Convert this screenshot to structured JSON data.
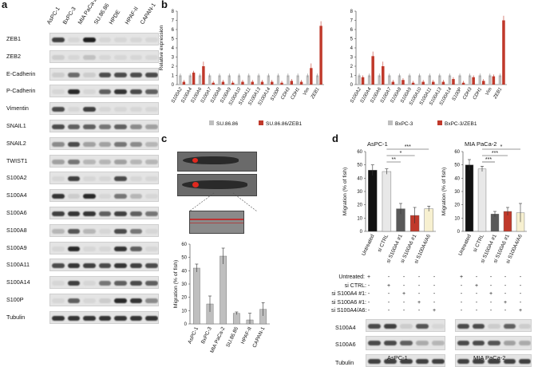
{
  "panels": {
    "a": {
      "letter": "a",
      "lanes": [
        "AsPC-1",
        "BxPC-3",
        "MIA PaCa-2",
        "SU.86.86",
        "HPDE",
        "HPAF-II",
        "CAPAN-1"
      ],
      "rows": [
        {
          "name": "ZEB1",
          "bands": [
            0.75,
            0.05,
            0.9,
            0.05,
            0.05,
            0.05,
            0.05
          ]
        },
        {
          "name": "ZEB2",
          "bands": [
            0.1,
            0.05,
            0.15,
            0.05,
            0.05,
            0.05,
            0.05
          ]
        },
        {
          "name": "E-Cadherin",
          "bands": [
            0.1,
            0.55,
            0.1,
            0.7,
            0.7,
            0.7,
            0.7
          ]
        },
        {
          "name": "P-Cadherin",
          "bands": [
            0.05,
            0.85,
            0.05,
            0.6,
            0.8,
            0.7,
            0.6
          ]
        },
        {
          "name": "Vimentin",
          "bands": [
            0.7,
            0.05,
            0.75,
            0.05,
            0.05,
            0.05,
            0.05
          ]
        },
        {
          "name": "SNAIL1",
          "bands": [
            0.7,
            0.6,
            0.6,
            0.5,
            0.6,
            0.4,
            0.3
          ]
        },
        {
          "name": "SNAIL2",
          "bands": [
            0.4,
            0.7,
            0.3,
            0.3,
            0.5,
            0.4,
            0.2
          ]
        },
        {
          "name": "TWIST1",
          "bands": [
            0.3,
            0.5,
            0.2,
            0.2,
            0.3,
            0.2,
            0.2
          ]
        },
        {
          "name": "S100A2",
          "bands": [
            0.05,
            0.75,
            0.05,
            0.05,
            0.7,
            0.05,
            0.05
          ]
        },
        {
          "name": "S100A4",
          "bands": [
            0.8,
            0.1,
            0.85,
            0.05,
            0.5,
            0.2,
            0.05
          ]
        },
        {
          "name": "S100A6",
          "bands": [
            0.75,
            0.8,
            0.8,
            0.6,
            0.75,
            0.6,
            0.5
          ]
        },
        {
          "name": "S100A8",
          "bands": [
            0.2,
            0.65,
            0.2,
            0.05,
            0.7,
            0.5,
            0.05
          ]
        },
        {
          "name": "S100A9",
          "bands": [
            0.05,
            0.85,
            0.05,
            0.05,
            0.8,
            0.6,
            0.05
          ]
        },
        {
          "name": "S100A11",
          "bands": [
            0.7,
            0.8,
            0.75,
            0.7,
            0.8,
            0.75,
            0.7
          ]
        },
        {
          "name": "S100A14",
          "bands": [
            0.05,
            0.75,
            0.05,
            0.5,
            0.6,
            0.7,
            0.6
          ]
        },
        {
          "name": "S100P",
          "bands": [
            0.05,
            0.6,
            0.05,
            0.1,
            0.85,
            0.8,
            0.4
          ]
        },
        {
          "name": "Tubulin",
          "bands": [
            0.8,
            0.8,
            0.8,
            0.8,
            0.8,
            0.8,
            0.8
          ]
        }
      ]
    },
    "b": {
      "letter": "b"
    },
    "c": {
      "letter": "c"
    },
    "d": {
      "letter": "d",
      "treat_rows": [
        "Untreated:",
        "si CTRL:",
        "si S100A4 #1:",
        "si S100A6 #1:",
        "si S100A4/A6:"
      ],
      "treat_matrix": [
        [
          "+",
          "-",
          "-",
          "-",
          "-"
        ],
        [
          "-",
          "+",
          "-",
          "-",
          "-"
        ],
        [
          "-",
          "-",
          "+",
          "-",
          "-"
        ],
        [
          "-",
          "-",
          "-",
          "+",
          "-"
        ],
        [
          "-",
          "-",
          "-",
          "-",
          "+"
        ]
      ],
      "blot_rows": [
        "S100A4",
        "S100A6",
        "Tubulin"
      ],
      "blot_cells": [
        "AsPC-1",
        "MIA PaCa-2"
      ]
    }
  },
  "colors": {
    "grey_bar": "#bfbfbf",
    "red_bar": "#c0392b",
    "dark_grey": "#595959",
    "black": "#111111",
    "light_bar": "#e8e8e8",
    "yellowish": "#f7f0d0"
  },
  "chart_data": [
    {
      "id": "b-left",
      "type": "bar",
      "categories": [
        "S100A2",
        "S100A4",
        "S100A6",
        "S100A7",
        "S100A8",
        "S100A9",
        "S100A10",
        "S100A11",
        "S100A13",
        "S100A14",
        "S100P",
        "CDH3",
        "CDH1",
        "Vim",
        "ZEB1"
      ],
      "series": [
        {
          "name": "SU.86.86",
          "values": [
            1,
            1,
            1,
            1,
            1,
            1,
            1,
            1,
            1,
            1,
            1,
            1,
            1,
            1,
            1
          ],
          "color": "#bfbfbf"
        },
        {
          "name": "SU.86.86/ZEB1",
          "values": [
            0.3,
            1.3,
            2.0,
            0.2,
            0.3,
            0.2,
            0.3,
            0.3,
            0.3,
            0.3,
            0.2,
            0.4,
            0.3,
            1.8,
            6.4
          ],
          "color": "#c0392b"
        }
      ],
      "ylabel": "Relative expression",
      "ylim": [
        0,
        8
      ],
      "yticks": [
        0,
        1,
        2,
        3,
        4,
        5,
        6,
        7,
        8
      ]
    },
    {
      "id": "b-right",
      "type": "bar",
      "categories": [
        "S100A2",
        "S100A4",
        "S100A6",
        "S100A7",
        "S100A8",
        "S100A9",
        "S100A10",
        "S100A11",
        "S100A13",
        "S100A14",
        "S100P",
        "CDH3",
        "CDH1",
        "Vim",
        "ZEB1"
      ],
      "series": [
        {
          "name": "BxPC-3",
          "values": [
            1,
            1,
            1,
            1,
            1,
            1,
            1,
            1,
            1,
            1,
            1,
            1,
            1,
            1,
            1
          ],
          "color": "#bfbfbf"
        },
        {
          "name": "BxPC-3/ZEB1",
          "values": [
            0.8,
            3.1,
            2.0,
            0.3,
            0.5,
            0.2,
            0.3,
            0.3,
            0.3,
            0.6,
            0.2,
            0.8,
            0.4,
            0.9,
            7.0
          ],
          "color": "#c0392b"
        }
      ],
      "ylabel": "",
      "ylim": [
        0,
        8
      ],
      "yticks": [
        0,
        1,
        2,
        3,
        4,
        5,
        6,
        7,
        8
      ]
    },
    {
      "id": "c",
      "type": "bar",
      "categories": [
        "AsPC-1",
        "BxPC-3",
        "MIA PaCa-2",
        "SU.86.86",
        "HPAF-II",
        "CAPAN-1"
      ],
      "values": [
        42,
        15,
        51,
        8,
        3,
        11
      ],
      "errors": [
        3,
        6,
        6,
        1,
        5,
        5
      ],
      "ylabel": "Migration (% of fish)",
      "ylim": [
        0,
        60
      ],
      "yticks": [
        0,
        10,
        20,
        30,
        40,
        50,
        60
      ],
      "color": "#bfbfbf"
    },
    {
      "id": "d-left",
      "type": "bar",
      "title": "AsPC-1",
      "categories": [
        "Untreated",
        "si CTRL",
        "si S100A4 #1",
        "si S100A6 #1",
        "si S100A4/A6"
      ],
      "values": [
        46,
        45,
        17,
        12,
        17
      ],
      "errors": [
        4,
        2,
        4,
        6,
        2
      ],
      "colors": [
        "#111111",
        "#e8e8e8",
        "#595959",
        "#c0392b",
        "#f7f0d0"
      ],
      "ylabel": "Migration (% of fish)",
      "ylim": [
        0,
        60
      ],
      "yticks": [
        0,
        10,
        20,
        30,
        40,
        50,
        60
      ],
      "significance": [
        "***",
        "*",
        "**"
      ]
    },
    {
      "id": "d-right",
      "type": "bar",
      "title": "MIA PaCa-2",
      "categories": [
        "Untreated",
        "si CTRL",
        "si S100A4 #1",
        "si S100A6 #1",
        "si S100A4/A6"
      ],
      "values": [
        50,
        47,
        13,
        15,
        14
      ],
      "errors": [
        4,
        2,
        2,
        3,
        7
      ],
      "colors": [
        "#111111",
        "#e8e8e8",
        "#595959",
        "#c0392b",
        "#f7f0d0"
      ],
      "ylabel": "Migration (% of fish)",
      "ylim": [
        0,
        60
      ],
      "yticks": [
        0,
        10,
        20,
        30,
        40,
        50,
        60
      ],
      "significance": [
        "*",
        "***",
        "***"
      ]
    }
  ]
}
